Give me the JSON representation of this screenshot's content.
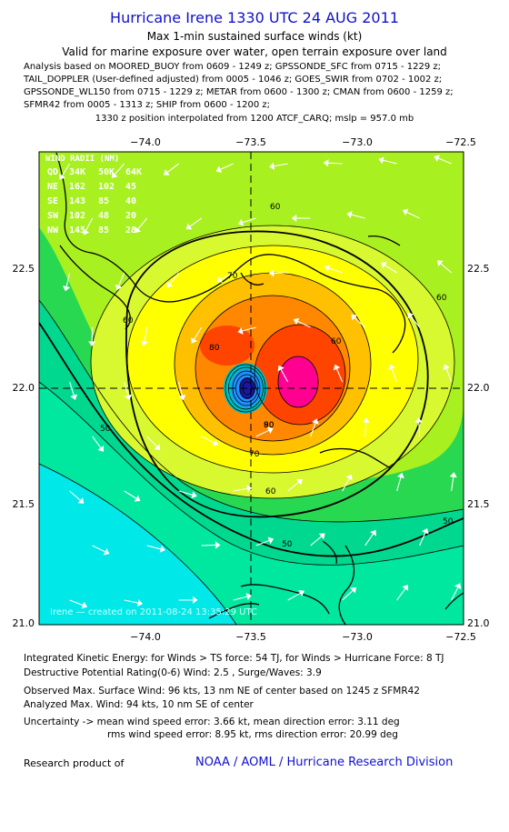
{
  "header": {
    "title": "Hurricane Irene 1330 UTC 24 AUG 2011",
    "subtitle1": "Max 1-min sustained surface winds (kt)",
    "subtitle2": "Valid for marine exposure over water, open terrain exposure over land"
  },
  "analysis_lines": [
    "Analysis based on MOORED_BUOY from 0609 - 1249 z; GPSSONDE_SFC from 0715 - 1229 z;",
    "TAIL_DOPPLER (User-defined adjusted) from 0005 - 1046 z; GOES_SWIR from 0702 - 1002 z;",
    "GPSSONDE_WL150 from 0715 - 1229 z; METAR from 0600 - 1300 z; CMAN from 0600 - 1259 z;",
    "SFMR42 from 0005 - 1313 z; SHIP from 0600 - 1200 z;"
  ],
  "position_line": "1330 z position interpolated from 1200 ATCF_CARQ; mslp = 957.0 mb",
  "map": {
    "lon_ticks": [
      "−74.0",
      "−73.5",
      "−73.0",
      "−72.5"
    ],
    "lat_ticks": [
      "22.5",
      "22.0",
      "21.5",
      "21.0"
    ],
    "contour_labels": [
      "60",
      "70",
      "80",
      "90",
      "60",
      "50",
      "60",
      "50",
      "60",
      "50",
      "60",
      "70",
      "80"
    ],
    "colors": {
      "ocean_far": "#00e8e8",
      "band_40": "#00e8a0",
      "band_50": "#28d850",
      "band_55": "#a8f020",
      "band_60": "#d8f830",
      "band_65": "#ffff00",
      "band_70": "#ffc000",
      "band_75": "#ff8800",
      "band_80": "#ff4400",
      "band_85": "#ff0090",
      "eye": "#1818a0",
      "arrow": "#ffffff"
    },
    "wind_radii": {
      "header": "WIND RADII (NM)",
      "rows": [
        [
          "QD",
          "34K",
          "50K",
          "64K"
        ],
        [
          "NE",
          "162",
          "102",
          "45"
        ],
        [
          "SE",
          "143",
          "85",
          "40"
        ],
        [
          "SW",
          "102",
          "48",
          "20"
        ],
        [
          "NW",
          "145",
          "85",
          "28"
        ]
      ]
    },
    "credit": "Irene — created on 2011-08-24  13:35:29 UTC"
  },
  "footer": {
    "ike": "Integrated Kinetic Energy:  for Winds > TS force: 54 TJ,  for Winds > Hurricane Force: 8 TJ",
    "dpr": "Destructive Potential Rating(0-6)   Wind: 2.5 , Surge/Waves: 3.9",
    "obs_max": "Observed Max. Surface Wind: 96 kts, 13 nm NE of center based on 1245 z SFMR42",
    "ana_max": "Analyzed Max. Wind: 94 kts, 10 nm SE of center",
    "unc1": "Uncertainty -> mean wind speed error: 3.66 kt,   mean direction error: 3.11 deg",
    "unc2": "rms wind speed error: 8.95 kt,   rms direction error: 20.99 deg",
    "research": "Research product of",
    "org": "NOAA / AOML / Hurricane Research Division"
  }
}
